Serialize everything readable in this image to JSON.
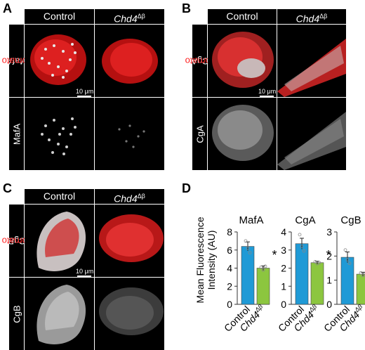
{
  "panels": {
    "A": {
      "letter": "A",
      "col1": "Control",
      "col2": "Chd4",
      "col2_sup": "Δβ",
      "row1_marker": "MafA",
      "row1_overlay": "Tomato",
      "row2_marker": "MafA",
      "scale": "10 μm"
    },
    "B": {
      "letter": "B",
      "col1": "Control",
      "col2": "Chd4",
      "col2_sup": "Δβ",
      "row1_marker": "CgA",
      "row1_overlay": "Tomato",
      "row2_marker": "CgA",
      "scale": "10 μm"
    },
    "C": {
      "letter": "C",
      "col1": "Control",
      "col2": "Chd4",
      "col2_sup": "Δβ",
      "row1_marker": "CgB",
      "row1_overlay": "Tomato",
      "row2_marker": "CgB",
      "scale": "10 μm"
    },
    "D": {
      "letter": "D"
    }
  },
  "chart_data": {
    "type": "bar",
    "ylabel_line1": "Mean Fluorescence",
    "ylabel_line2": "Intensity (AU)",
    "categories": [
      "Control",
      "Chd4Δβ"
    ],
    "colors": {
      "Control": "#1f9ad6",
      "Chd4Δβ": "#8cc63f"
    },
    "subplots": [
      {
        "title": "MafA",
        "ylim": [
          0,
          8
        ],
        "yticks": [
          0,
          2,
          4,
          6,
          8
        ],
        "values": [
          6.4,
          4.0
        ],
        "errors": [
          0.5,
          0.25
        ],
        "significance": "*",
        "points": [
          [
            7.0,
            6.2,
            5.7
          ],
          [
            4.1,
            3.8,
            4.2
          ]
        ]
      },
      {
        "title": "CgA",
        "ylim": [
          0,
          4
        ],
        "yticks": [
          0,
          1,
          2,
          3,
          4
        ],
        "values": [
          3.35,
          2.3
        ],
        "errors": [
          0.3,
          0.08
        ],
        "significance": "*",
        "points": [
          [
            3.85,
            3.2,
            2.95
          ],
          [
            2.35,
            2.25,
            2.3
          ]
        ]
      },
      {
        "title": "CgB",
        "ylim": [
          0,
          3
        ],
        "yticks": [
          0,
          1,
          2,
          3
        ],
        "values": [
          1.95,
          1.25
        ],
        "errors": [
          0.22,
          0.08
        ],
        "significance": "*",
        "points": [
          [
            2.25,
            1.85,
            1.7
          ],
          [
            1.3,
            1.2,
            1.25
          ]
        ]
      }
    ]
  }
}
